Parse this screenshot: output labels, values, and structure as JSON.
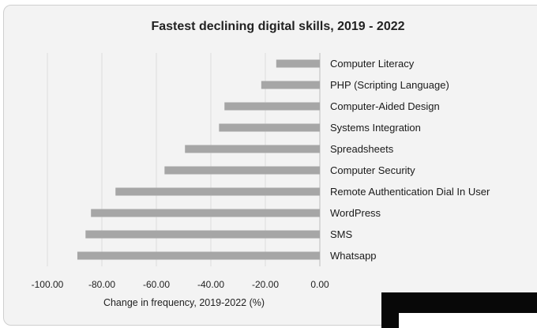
{
  "chart_data": {
    "type": "bar",
    "orientation": "horizontal",
    "title": "Fastest declining digital skills, 2019 - 2022",
    "xlabel": "Change in frequency, 2019-2022 (%)",
    "ylabel": "",
    "xlim": [
      -100,
      0
    ],
    "x_ticks": [
      "-100.00",
      "-80.00",
      "-60.00",
      "-40.00",
      "-20.00",
      "0.00"
    ],
    "categories": [
      "Computer Literacy",
      "PHP (Scripting Language)",
      "Computer-Aided Design",
      "Systems Integration",
      "Spreadsheets",
      "Computer Security",
      "Remote Authentication Dial In User",
      "WordPress",
      "SMS",
      "Whatsapp"
    ],
    "values": [
      -16,
      -21.5,
      -35,
      -37,
      -49.5,
      -57,
      -75,
      -84,
      -86,
      -89
    ],
    "grid": "vertical",
    "bar_color": "#a6a6a6"
  }
}
